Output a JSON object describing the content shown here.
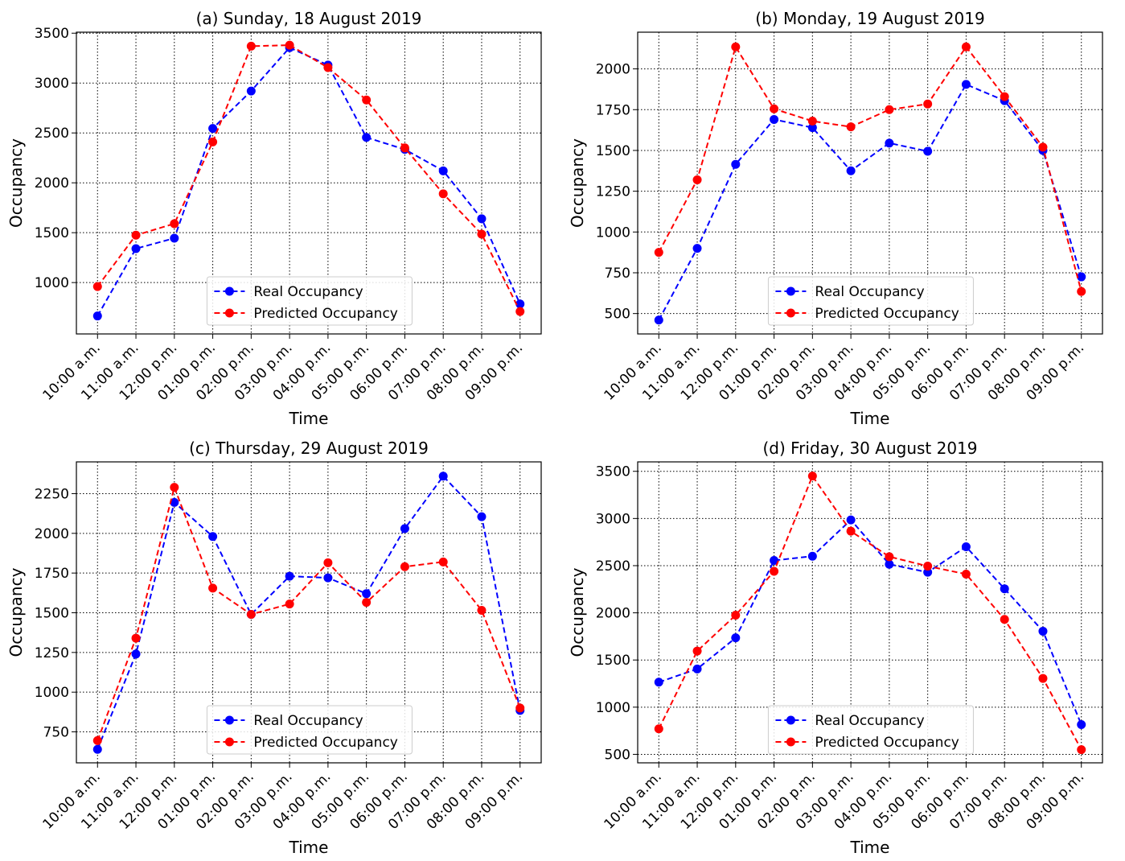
{
  "colors": {
    "real": "#0000ff",
    "predicted": "#ff0000",
    "grid": "#000000",
    "legend_border": "#cccccc"
  },
  "legend_labels": [
    "Real Occupancy",
    "Predicted Occupancy"
  ],
  "chart_data": [
    {
      "type": "line",
      "title": "(a) Sunday, 18 August 2019",
      "xlabel": "Time",
      "ylabel": "Occupancy",
      "categories": [
        "10:00 a.m.",
        "11:00 a.m.",
        "12:00 p.m.",
        "01:00 p.m.",
        "02:00 p.m.",
        "03:00 p.m.",
        "04:00 p.m.",
        "05:00 p.m.",
        "06:00 p.m.",
        "07:00 p.m.",
        "08:00 p.m.",
        "09:00 p.m."
      ],
      "ylim": [
        485,
        3510
      ],
      "yticks": [
        1000,
        1500,
        2000,
        2500,
        3000,
        3500
      ],
      "grid": true,
      "legend_position": "lower-center",
      "series": [
        {
          "name": "Real Occupancy",
          "values": [
            665,
            1340,
            1445,
            2545,
            2920,
            3355,
            3180,
            2455,
            2335,
            2120,
            1640,
            785
          ]
        },
        {
          "name": "Predicted Occupancy",
          "values": [
            960,
            1475,
            1590,
            2410,
            3370,
            3380,
            3155,
            2830,
            2350,
            1890,
            1485,
            710
          ]
        }
      ]
    },
    {
      "type": "line",
      "title": "(b) Monday, 19 August 2019",
      "xlabel": "Time",
      "ylabel": "Occupancy",
      "categories": [
        "10:00 a.m.",
        "11:00 a.m.",
        "12:00 p.m.",
        "01:00 p.m.",
        "02:00 p.m.",
        "03:00 p.m.",
        "04:00 p.m.",
        "05:00 p.m.",
        "06:00 p.m.",
        "07:00 p.m.",
        "08:00 p.m.",
        "09:00 p.m."
      ],
      "ylim": [
        375,
        2225
      ],
      "yticks": [
        500,
        750,
        1000,
        1250,
        1500,
        1750,
        2000
      ],
      "grid": true,
      "legend_position": "lower-center",
      "series": [
        {
          "name": "Real Occupancy",
          "values": [
            460,
            900,
            1415,
            1690,
            1640,
            1375,
            1545,
            1495,
            1905,
            1805,
            1500,
            725
          ]
        },
        {
          "name": "Predicted Occupancy",
          "values": [
            875,
            1320,
            2135,
            1755,
            1680,
            1645,
            1750,
            1785,
            2135,
            1830,
            1520,
            635
          ]
        }
      ]
    },
    {
      "type": "line",
      "title": "(c) Thursday, 29 August 2019",
      "xlabel": "Time",
      "ylabel": "Occupancy",
      "categories": [
        "10:00 a.m.",
        "11:00 a.m.",
        "12:00 p.m.",
        "01:00 p.m.",
        "02:00 p.m.",
        "03:00 p.m.",
        "04:00 p.m.",
        "05:00 p.m.",
        "06:00 p.m.",
        "07:00 p.m.",
        "08:00 p.m.",
        "09:00 p.m."
      ],
      "ylim": [
        555,
        2450
      ],
      "yticks": [
        750,
        1000,
        1250,
        1500,
        1750,
        2000,
        2250
      ],
      "grid": true,
      "legend_position": "lower-center",
      "series": [
        {
          "name": "Real Occupancy",
          "values": [
            640,
            1240,
            2195,
            1980,
            1490,
            1730,
            1720,
            1620,
            2030,
            2360,
            2105,
            885
          ]
        },
        {
          "name": "Predicted Occupancy",
          "values": [
            695,
            1340,
            2290,
            1655,
            1490,
            1555,
            1815,
            1565,
            1790,
            1820,
            1515,
            900
          ]
        }
      ]
    },
    {
      "type": "line",
      "title": "(d) Friday, 30 August 2019",
      "xlabel": "Time",
      "ylabel": "Occupancy",
      "categories": [
        "10:00 a.m.",
        "11:00 a.m.",
        "12:00 p.m.",
        "01:00 p.m.",
        "02:00 p.m.",
        "03:00 p.m.",
        "04:00 p.m.",
        "05:00 p.m.",
        "06:00 p.m.",
        "07:00 p.m.",
        "08:00 p.m.",
        "09:00 p.m."
      ],
      "ylim": [
        410,
        3600
      ],
      "yticks": [
        500,
        1000,
        1500,
        2000,
        2500,
        3000,
        3500
      ],
      "grid": true,
      "legend_position": "lower-center",
      "series": [
        {
          "name": "Real Occupancy",
          "values": [
            1265,
            1405,
            1735,
            2555,
            2600,
            2985,
            2515,
            2430,
            2700,
            2255,
            1805,
            815
          ]
        },
        {
          "name": "Predicted Occupancy",
          "values": [
            770,
            1595,
            1975,
            2440,
            3450,
            2865,
            2595,
            2495,
            2410,
            1930,
            1305,
            550
          ]
        }
      ]
    }
  ]
}
